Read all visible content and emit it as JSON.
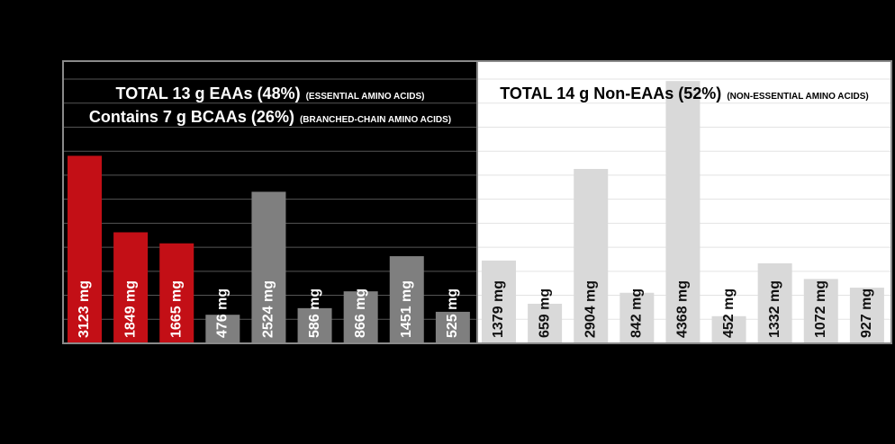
{
  "chart_data": {
    "type": "bar",
    "annotations": [
      {
        "text": "TOTAL 13 g EAAs (48%)",
        "note": "(ESSENTIAL AMINO ACIDS)"
      },
      {
        "text": "Contains 7 g BCAAs (26%)",
        "note": "(BRANCHED-CHAIN AMINO ACIDS)"
      },
      {
        "text": "TOTAL 14 g Non-EAAs (52%)",
        "note": "(NON-ESSENTIAL AMINO ACIDS)"
      }
    ],
    "values": [
      3123,
      1849,
      1665,
      476,
      2524,
      586,
      866,
      1451,
      525,
      1379,
      659,
      2904,
      842,
      4368,
      452,
      1332,
      1072,
      927
    ],
    "value_labels": [
      "3123 mg",
      "1849 mg",
      "1665 mg",
      "476 mg",
      "2524 mg",
      "586 mg",
      "866 mg",
      "1451 mg",
      "525 mg",
      "1379 mg",
      "659 mg",
      "2904 mg",
      "842 mg",
      "4368 mg",
      "452 mg",
      "1332 mg",
      "1072 mg",
      "927 mg"
    ],
    "colors": [
      "#c30f16",
      "#c30f16",
      "#c30f16",
      "#7f7f7f",
      "#7f7f7f",
      "#7f7f7f",
      "#7f7f7f",
      "#7f7f7f",
      "#7f7f7f",
      "#d9d9d9",
      "#d9d9d9",
      "#d9d9d9",
      "#d9d9d9",
      "#d9d9d9",
      "#d9d9d9",
      "#d9d9d9",
      "#d9d9d9",
      "#d9d9d9"
    ],
    "ylim": [
      0,
      4700
    ],
    "yticks": [
      0,
      400,
      800,
      1200,
      1600,
      2000,
      2400,
      2800,
      3200,
      3600,
      4000,
      4400
    ],
    "grid": true
  }
}
